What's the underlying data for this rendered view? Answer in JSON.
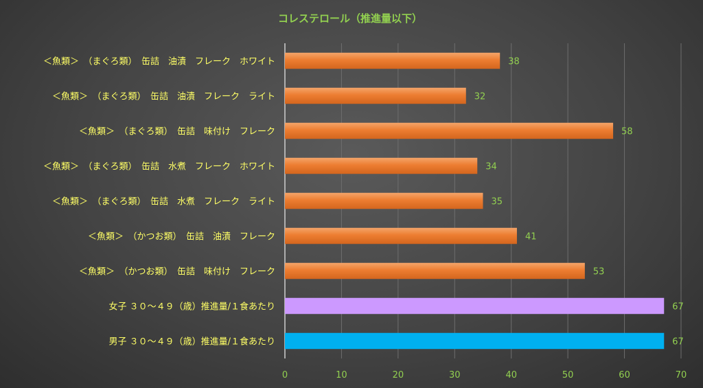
{
  "chart_data": {
    "type": "bar",
    "orientation": "horizontal",
    "title": "コレステロール（推進量以下）",
    "categories": [
      "＜魚類＞　（まぐろ類）　缶詰　油漬　フレーク　ホワイト",
      "＜魚類＞　（まぐろ類）　缶詰　油漬　フレーク　ライト",
      "＜魚類＞　（まぐろ類）　缶詰　味付け　フレーク",
      "＜魚類＞　（まぐろ類）　缶詰　水煮　フレーク　ホワイト",
      "＜魚類＞　（まぐろ類）　缶詰　水煮　フレーク　ライト",
      "＜魚類＞　（かつお類）　缶詰　油漬　フレーク",
      "＜魚類＞　（かつお類）　缶詰　味付け　フレーク",
      "女子 ３０～４９（歳）推進量/１食あたり",
      "男子 ３０～４９（歳）推進量/１食あたり"
    ],
    "values": [
      38,
      32,
      58,
      34,
      35,
      41,
      53,
      67,
      67
    ],
    "bar_colors": [
      "#ED7D31",
      "#ED7D31",
      "#ED7D31",
      "#ED7D31",
      "#ED7D31",
      "#ED7D31",
      "#ED7D31",
      "#CC99FF",
      "#00B0F0"
    ],
    "xlim": [
      0,
      70
    ],
    "xticks": [
      0,
      10,
      20,
      30,
      40,
      50,
      60,
      70
    ],
    "grid": true,
    "colors": {
      "title": "#92D050",
      "category_label": "#FFFF66",
      "data_label": "#92D050",
      "tick_label": "#92D050",
      "gridline": "#6e6e6e",
      "axis": "#d0d0d0"
    }
  }
}
